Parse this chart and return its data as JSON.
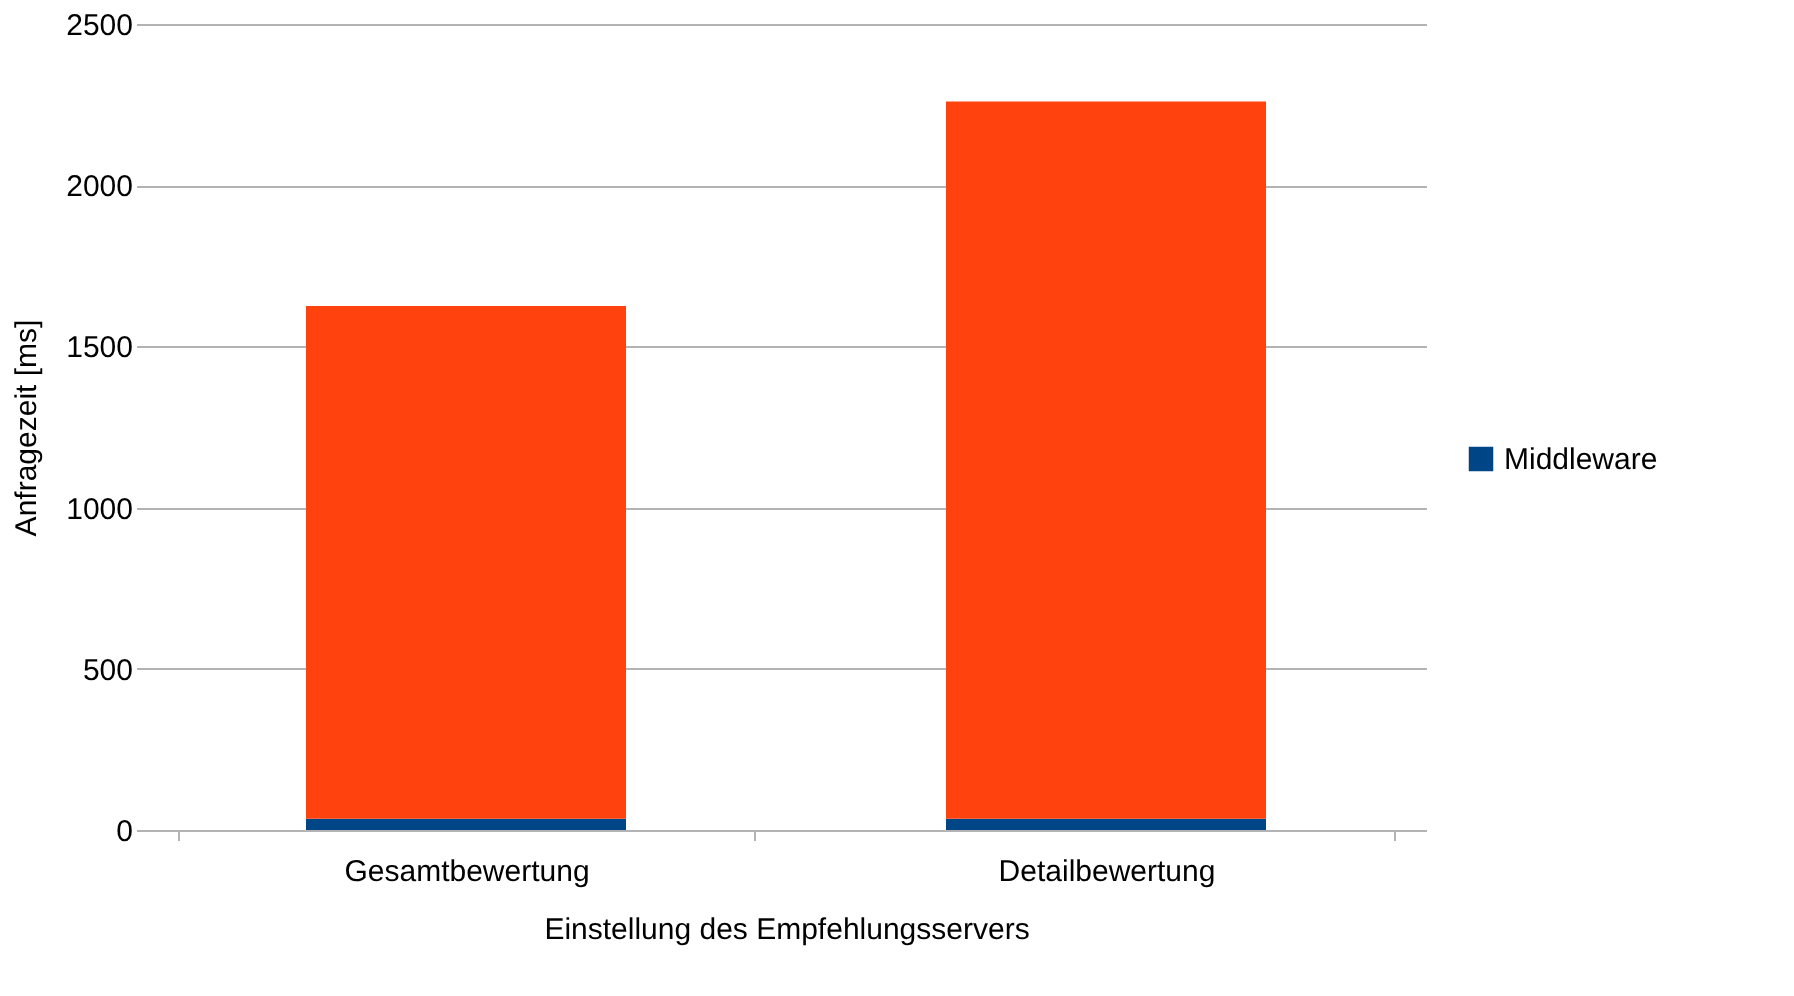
{
  "chart_data": {
    "type": "bar",
    "stacked": true,
    "xlabel": "Einstellung des Empfehlungsservers",
    "ylabel": "Anfragezeit [ms]",
    "categories": [
      "Gesamtbewertung",
      "Detailbewertung"
    ],
    "series": [
      {
        "name": "Middleware",
        "color": "#004586",
        "values": [
          35,
          35
        ]
      },
      {
        "color": "#ff420e",
        "values": [
          1590,
          2225
        ]
      }
    ],
    "ylim": [
      0,
      2500
    ],
    "yticks": [
      0,
      500,
      1000,
      1500,
      2000,
      2500
    ],
    "grid": "y",
    "legend": "right"
  }
}
